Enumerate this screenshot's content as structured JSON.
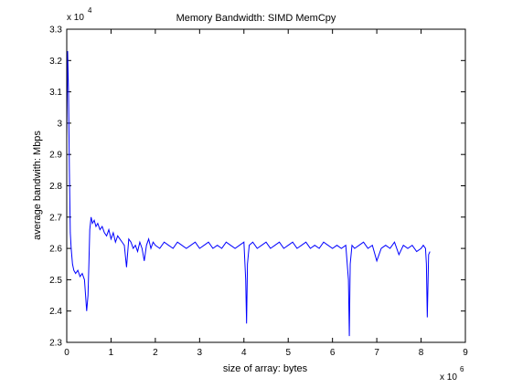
{
  "chart_data": {
    "type": "line",
    "title": "Memory Bandwidth: SIMD MemCpy",
    "xlabel": "size of array: bytes",
    "ylabel": "average bandwith: Mbps",
    "x_multiplier_label": "x 10",
    "x_multiplier_exp": "6",
    "y_multiplier_label": "x 10",
    "y_multiplier_exp": "4",
    "xlim": [
      0,
      9
    ],
    "ylim": [
      2.3,
      3.3
    ],
    "x_ticks": [
      0,
      1,
      2,
      3,
      4,
      5,
      6,
      7,
      8,
      9
    ],
    "x_tick_labels": [
      "0",
      "1",
      "2",
      "3",
      "4",
      "5",
      "6",
      "7",
      "8",
      "9"
    ],
    "y_ticks": [
      2.3,
      2.4,
      2.5,
      2.6,
      2.7,
      2.8,
      2.9,
      3.0,
      3.1,
      3.2,
      3.3
    ],
    "y_tick_labels": [
      "2.3",
      "2.4",
      "2.5",
      "2.6",
      "2.7",
      "2.8",
      "2.9",
      "3",
      "3.1",
      "3.2",
      "3.3"
    ],
    "grid": false,
    "line_color": "#0000ff",
    "series": [
      {
        "x": [
          0.0,
          0.02,
          0.04,
          0.06,
          0.08,
          0.1,
          0.13,
          0.16,
          0.2,
          0.25,
          0.3,
          0.35,
          0.4,
          0.45,
          0.48,
          0.5,
          0.52,
          0.55,
          0.58,
          0.62,
          0.66,
          0.7,
          0.75,
          0.8,
          0.85,
          0.9,
          0.95,
          1.0,
          1.05,
          1.1,
          1.15,
          1.2,
          1.25,
          1.3,
          1.35,
          1.4,
          1.45,
          1.5,
          1.55,
          1.6,
          1.65,
          1.7,
          1.75,
          1.8,
          1.85,
          1.9,
          1.95,
          2.0,
          2.1,
          2.2,
          2.3,
          2.4,
          2.5,
          2.6,
          2.7,
          2.8,
          2.9,
          3.0,
          3.1,
          3.2,
          3.3,
          3.4,
          3.5,
          3.6,
          3.7,
          3.8,
          3.9,
          4.0,
          4.04,
          4.06,
          4.08,
          4.12,
          4.2,
          4.3,
          4.4,
          4.5,
          4.6,
          4.7,
          4.8,
          4.9,
          5.0,
          5.1,
          5.2,
          5.3,
          5.4,
          5.5,
          5.6,
          5.7,
          5.8,
          5.9,
          6.0,
          6.1,
          6.2,
          6.3,
          6.36,
          6.38,
          6.4,
          6.44,
          6.5,
          6.6,
          6.7,
          6.8,
          6.9,
          7.0,
          7.1,
          7.2,
          7.3,
          7.4,
          7.5,
          7.6,
          7.7,
          7.8,
          7.9,
          8.0,
          8.05,
          8.1,
          8.12,
          8.14,
          8.17,
          8.2
        ],
        "y": [
          2.95,
          3.23,
          3.1,
          2.85,
          2.65,
          2.6,
          2.55,
          2.53,
          2.52,
          2.53,
          2.51,
          2.52,
          2.5,
          2.4,
          2.45,
          2.55,
          2.66,
          2.7,
          2.68,
          2.69,
          2.67,
          2.68,
          2.66,
          2.67,
          2.65,
          2.64,
          2.66,
          2.63,
          2.65,
          2.62,
          2.64,
          2.63,
          2.62,
          2.61,
          2.54,
          2.63,
          2.62,
          2.6,
          2.61,
          2.59,
          2.62,
          2.6,
          2.56,
          2.61,
          2.63,
          2.6,
          2.62,
          2.61,
          2.6,
          2.62,
          2.61,
          2.6,
          2.62,
          2.61,
          2.6,
          2.61,
          2.62,
          2.6,
          2.61,
          2.62,
          2.6,
          2.61,
          2.6,
          2.62,
          2.61,
          2.6,
          2.61,
          2.62,
          2.5,
          2.36,
          2.55,
          2.61,
          2.62,
          2.6,
          2.61,
          2.62,
          2.6,
          2.61,
          2.62,
          2.6,
          2.61,
          2.62,
          2.6,
          2.61,
          2.62,
          2.6,
          2.61,
          2.6,
          2.62,
          2.61,
          2.6,
          2.61,
          2.6,
          2.61,
          2.5,
          2.32,
          2.55,
          2.61,
          2.6,
          2.61,
          2.62,
          2.6,
          2.61,
          2.56,
          2.6,
          2.61,
          2.6,
          2.62,
          2.58,
          2.61,
          2.6,
          2.61,
          2.59,
          2.6,
          2.61,
          2.6,
          2.55,
          2.38,
          2.58,
          2.59
        ]
      }
    ]
  }
}
